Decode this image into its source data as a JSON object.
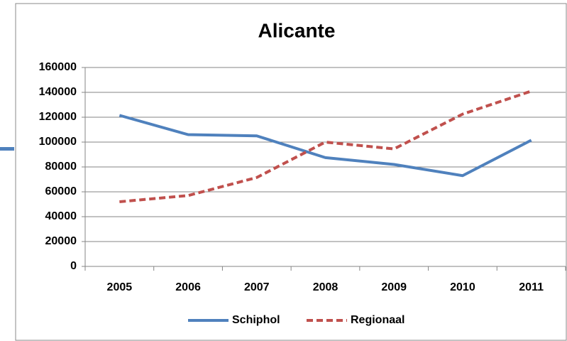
{
  "chart_data": {
    "type": "line",
    "title": "Alicante",
    "categories": [
      "2005",
      "2006",
      "2007",
      "2008",
      "2009",
      "2010",
      "2011"
    ],
    "series": [
      {
        "name": "Schiphol",
        "color": "#4f81bd",
        "dash": false,
        "values": [
          121500,
          106000,
          105000,
          87500,
          82000,
          73000,
          101500
        ]
      },
      {
        "name": "Regionaal",
        "color": "#c0504d",
        "dash": true,
        "values": [
          52000,
          57000,
          71500,
          100000,
          94500,
          122500,
          141000
        ]
      }
    ],
    "ylim": [
      0,
      160000
    ],
    "yticks": [
      0,
      20000,
      40000,
      60000,
      80000,
      100000,
      120000,
      140000,
      160000
    ],
    "grid": true,
    "legend": "bottom"
  }
}
